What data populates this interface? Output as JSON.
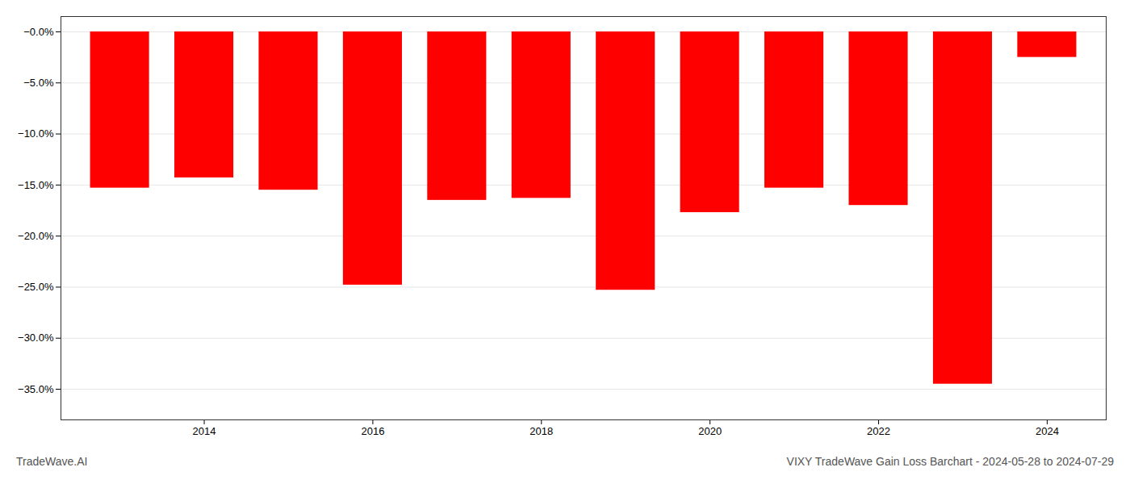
{
  "chart_data": {
    "type": "bar",
    "x": [
      2013,
      2014,
      2015,
      2016,
      2017,
      2018,
      2019,
      2020,
      2021,
      2022,
      2023,
      2024
    ],
    "values": [
      -0.153,
      -0.143,
      -0.155,
      -0.248,
      -0.165,
      -0.163,
      -0.253,
      -0.177,
      -0.153,
      -0.17,
      -0.345,
      -0.025
    ],
    "color": "#ff0000",
    "xlim": [
      2012.3,
      2024.7
    ],
    "xticks": [
      2014,
      2016,
      2018,
      2020,
      2022,
      2024
    ],
    "ylim": [
      -0.38,
      0.015
    ],
    "yticks": [
      {
        "value": 0.0,
        "label": "−0.0%"
      },
      {
        "value": -0.05,
        "label": "−5.0%"
      },
      {
        "value": -0.1,
        "label": "−10.0%"
      },
      {
        "value": -0.15,
        "label": "−15.0%"
      },
      {
        "value": -0.2,
        "label": "−20.0%"
      },
      {
        "value": -0.25,
        "label": "−25.0%"
      },
      {
        "value": -0.3,
        "label": "−30.0%"
      },
      {
        "value": -0.35,
        "label": "−35.0%"
      }
    ],
    "grid": true,
    "annotations": [
      "TradeWave.AI",
      "VIXY TradeWave Gain Loss Barchart - 2024-05-28 to 2024-07-29"
    ]
  }
}
